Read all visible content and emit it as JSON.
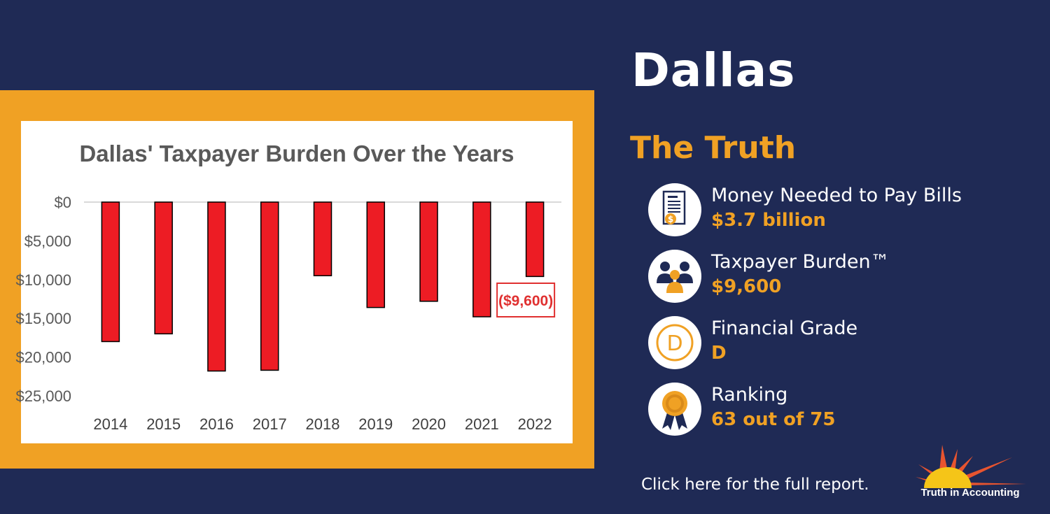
{
  "colors": {
    "background": "#1f2a55",
    "accent": "#f0a124",
    "bar": "#ed1c24",
    "callout": "#e03030"
  },
  "chart_data": {
    "type": "bar",
    "title": "Dallas' Taxpayer Burden Over the Years",
    "categories": [
      "2014",
      "2015",
      "2016",
      "2017",
      "2018",
      "2019",
      "2020",
      "2021",
      "2022"
    ],
    "values": [
      -18000,
      -17000,
      -21800,
      -21700,
      -9500,
      -13600,
      -12800,
      -14800,
      -9600
    ],
    "ylim": [
      -25000,
      0
    ],
    "y_ticks": [
      0,
      -5000,
      -10000,
      -15000,
      -20000,
      -25000
    ],
    "y_tick_labels": [
      "$0",
      "$5,000",
      "$10,000",
      "$15,000",
      "$20,000",
      "$25,000"
    ],
    "xlabel": "",
    "ylabel": "",
    "grid": false,
    "annotation": {
      "category": "2022",
      "text": "($9,600)"
    }
  },
  "header": {
    "city": "Dallas",
    "subtitle": "The Truth"
  },
  "stats": [
    {
      "label": "Money Needed to Pay Bills",
      "value": "$3.7 billion",
      "icon": "bill-icon"
    },
    {
      "label": "Taxpayer Burden™",
      "value": "$9,600",
      "icon": "taxpayers-icon"
    },
    {
      "label": "Financial Grade",
      "value": "D",
      "icon": "grade-icon"
    },
    {
      "label": "Ranking",
      "value": "63 out of 75",
      "icon": "ribbon-icon"
    }
  ],
  "footer": {
    "report_link": "Click here for the full report.",
    "logo_text": "Truth in Accounting"
  }
}
